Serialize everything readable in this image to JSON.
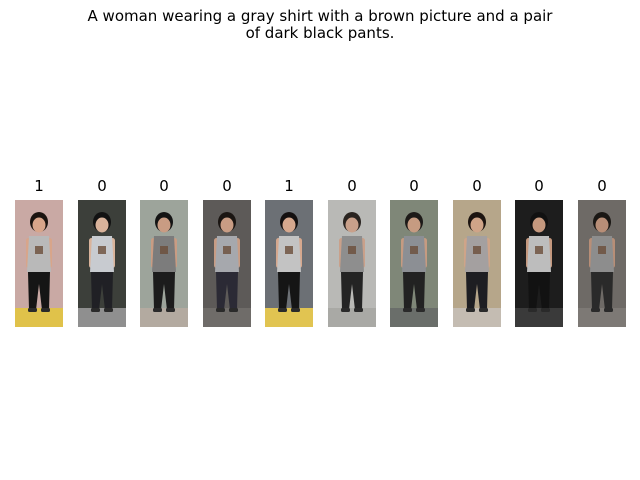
{
  "caption": "A woman wearing a gray shirt with a brown picture and a pair\nof dark black pants.",
  "gallery": {
    "items": [
      {
        "label": "1",
        "bg": "#c9a9a4",
        "shirt": "#b9b9b9",
        "pants": "#151515",
        "skin": "#d8a58a",
        "hair": "#1b1410",
        "floor": "#e0c24a"
      },
      {
        "label": "0",
        "bg": "#3c3f3a",
        "shirt": "#c8cbd0",
        "pants": "#202025",
        "skin": "#d9b39b",
        "hair": "#121212",
        "floor": "#8f8f8f"
      },
      {
        "label": "0",
        "bg": "#9da49b",
        "shirt": "#7c7c7c",
        "pants": "#1c1c1c",
        "skin": "#c99c83",
        "hair": "#141414",
        "floor": "#b3aaa0"
      },
      {
        "label": "0",
        "bg": "#5d5a58",
        "shirt": "#a6a8ad",
        "pants": "#2b2a35",
        "skin": "#c89c84",
        "hair": "#1a1512",
        "floor": "#6f6c69"
      },
      {
        "label": "1",
        "bg": "#6c7075",
        "shirt": "#c3c3c3",
        "pants": "#151515",
        "skin": "#d6a88e",
        "hair": "#141010",
        "floor": "#e1c451"
      },
      {
        "label": "0",
        "bg": "#b9b9b6",
        "shirt": "#8e8e8e",
        "pants": "#242424",
        "skin": "#c9a08a",
        "hair": "#2a2420",
        "floor": "#a9a9a5"
      },
      {
        "label": "0",
        "bg": "#7f8778",
        "shirt": "#8c8f94",
        "pants": "#222222",
        "skin": "#c69b81",
        "hair": "#1d1a18",
        "floor": "#6a6e6a"
      },
      {
        "label": "0",
        "bg": "#b6a68a",
        "shirt": "#a4a0a0",
        "pants": "#1e1e22",
        "skin": "#cfa488",
        "hair": "#1c1410",
        "floor": "#c4bcb2"
      },
      {
        "label": "0",
        "bg": "#1d1d1d",
        "shirt": "#bdbdbd",
        "pants": "#121212",
        "skin": "#c5987e",
        "hair": "#111111",
        "floor": "#3a3a3a"
      },
      {
        "label": "0",
        "bg": "#6e6a66",
        "shirt": "#8d8d8d",
        "pants": "#2a2a2a",
        "skin": "#b88e77",
        "hair": "#1a1714",
        "floor": "#7d7975"
      }
    ]
  }
}
